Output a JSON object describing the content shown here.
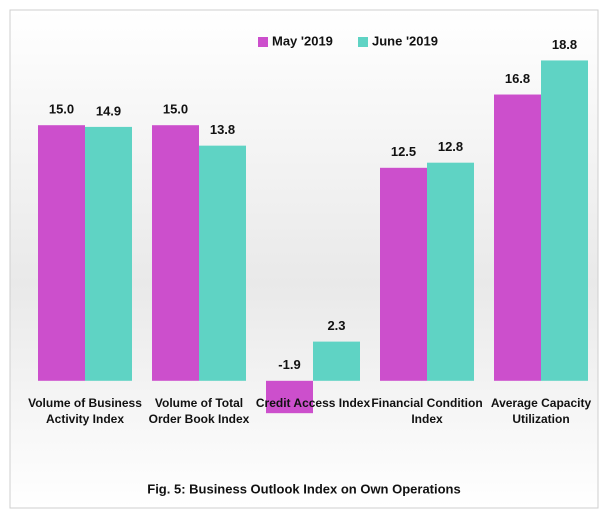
{
  "chart_data": {
    "type": "bar",
    "title": "Fig. 5: Business Outlook Index on Own Operations",
    "categories": [
      "Volume of Business Activity Index",
      "Volume of Total Order Book Index",
      "Credit Access Index",
      "Financial Condition Index",
      "Average Capacity Utilization"
    ],
    "series": [
      {
        "name": "May '2019",
        "color": "#cc4fcc",
        "values": [
          15.0,
          15.0,
          -1.9,
          12.5,
          16.8
        ],
        "value_labels": [
          "15.0",
          "15.0",
          "-1.9",
          "12.5",
          "16.8"
        ]
      },
      {
        "name": "June '2019",
        "color": "#5fd3c4",
        "values": [
          14.9,
          13.8,
          2.3,
          12.8,
          18.8
        ],
        "value_labels": [
          "14.9",
          "13.8",
          "2.3",
          "12.8",
          "18.8"
        ]
      }
    ],
    "ylim": [
      -5,
      20
    ],
    "legend": "top"
  }
}
